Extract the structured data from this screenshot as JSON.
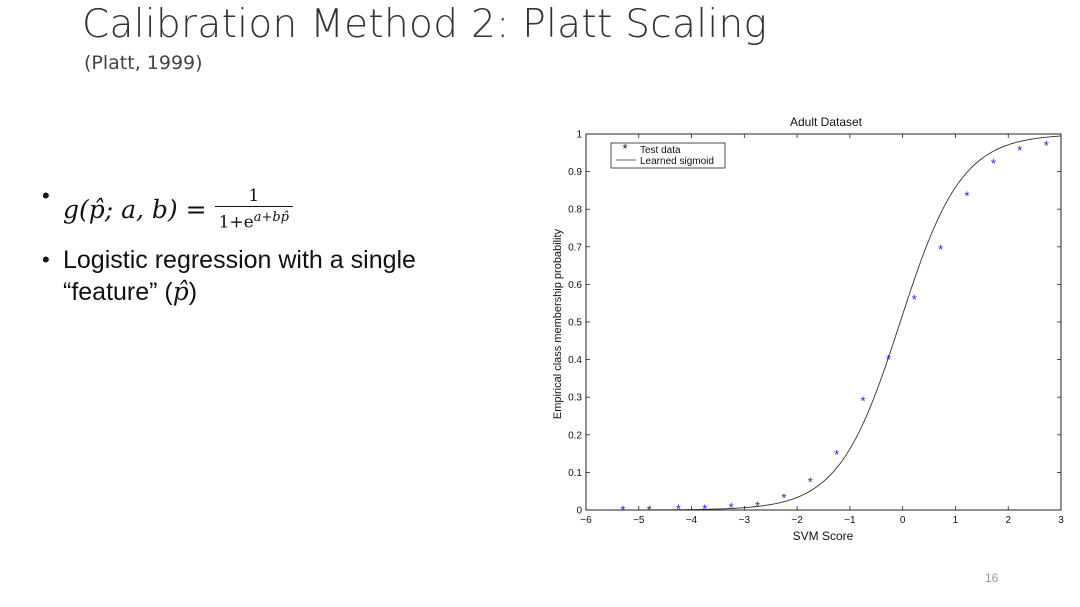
{
  "slide": {
    "title": "Calibration Method 2: Platt Scaling",
    "subtitle": "(Platt, 1999)",
    "bullets": [
      {
        "lhs": "g(p̂; a, b) =",
        "frac_num": "1",
        "frac_den_base": "1+e",
        "frac_den_exp": "a+bp̂"
      },
      {
        "text_line1": "Logistic regression with a single",
        "text_line2_prefix": "“feature” (",
        "text_line2_var": "p̂",
        "text_line2_suffix": ")"
      }
    ],
    "page_number": "16"
  },
  "chart_data": {
    "type": "scatter",
    "title": "Adult Dataset",
    "xlabel": "SVM Score",
    "ylabel": "Empirical class membership probability",
    "xlim": [
      -6,
      3
    ],
    "ylim": [
      0,
      1
    ],
    "xticks": [
      -6,
      -5,
      -4,
      -3,
      -2,
      -1,
      0,
      1,
      2,
      3
    ],
    "xtick_labels": [
      "−6",
      "−5",
      "−4",
      "−3",
      "−2",
      "−1",
      "0",
      "1",
      "2",
      "3"
    ],
    "yticks": [
      0,
      0.1,
      0.2,
      0.3,
      0.4,
      0.5,
      0.6,
      0.7,
      0.8,
      0.9,
      1
    ],
    "ytick_labels": [
      "0",
      "0.1",
      "0.2",
      "0.3",
      "0.4",
      "0.5",
      "0.6",
      "0.7",
      "0.8",
      "0.9",
      "1"
    ],
    "grid": false,
    "legend_position": "top-left",
    "series": [
      {
        "name": "Test data",
        "marker": "asterisk",
        "color": "#1a1aff",
        "x": [
          -5.3,
          -4.8,
          -4.25,
          -3.75,
          -3.25,
          -2.75,
          -2.25,
          -1.75,
          -1.25,
          -0.75,
          -0.27,
          0.22,
          0.72,
          1.22,
          1.72,
          2.22,
          2.72
        ],
        "y": [
          0.0,
          0.0,
          0.002,
          0.002,
          0.006,
          0.01,
          0.032,
          0.075,
          0.147,
          0.29,
          0.4,
          0.56,
          0.693,
          0.835,
          0.921,
          0.956,
          0.97
        ]
      },
      {
        "name": "Learned sigmoid",
        "type": "line",
        "color": "#333333",
        "a": -0.08,
        "b": -1.72
      }
    ]
  }
}
